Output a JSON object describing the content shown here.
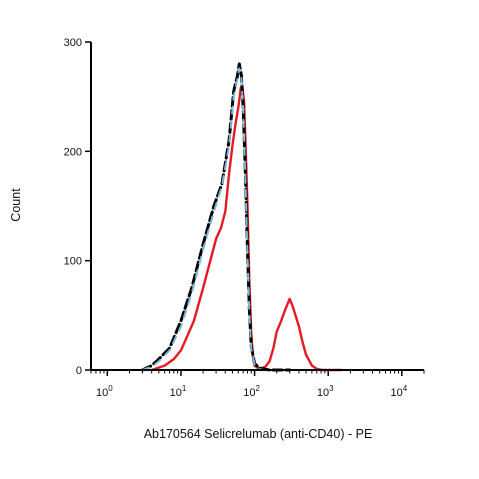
{
  "chart_data": {
    "type": "line",
    "title": "",
    "xlabel": "Ab170564 Selicrelumab (anti-CD40) - PE",
    "ylabel": "Count",
    "x_scale": "log",
    "xlim": [
      0.6,
      20000
    ],
    "ylim": [
      0,
      300
    ],
    "y_ticks": [
      0,
      100,
      200,
      300
    ],
    "y_tick_labels": [
      "0",
      "100",
      "200",
      "300"
    ],
    "x_ticks": [
      1,
      10,
      100,
      1000,
      10000
    ],
    "x_tick_labels": [
      {
        "base": "10",
        "exp": "0"
      },
      {
        "base": "10",
        "exp": "1"
      },
      {
        "base": "10",
        "exp": "2"
      },
      {
        "base": "10",
        "exp": "3"
      },
      {
        "base": "10",
        "exp": "4"
      }
    ],
    "grid": false,
    "legend": "none",
    "series": [
      {
        "color": "#000000",
        "style": "dashed",
        "x": [
          3,
          4,
          5,
          7,
          10,
          14,
          20,
          28,
          36,
          45,
          52,
          58,
          62,
          66,
          70,
          75,
          80,
          85,
          90,
          100,
          115,
          130,
          160,
          200,
          300
        ],
        "y": [
          0,
          4,
          10,
          20,
          45,
          75,
          115,
          150,
          170,
          210,
          255,
          268,
          280,
          270,
          240,
          180,
          110,
          55,
          22,
          6,
          2,
          1,
          0,
          0,
          0
        ]
      },
      {
        "color": "#7ab8dc",
        "style": "dashed",
        "x": [
          3,
          4,
          5,
          7,
          10,
          14,
          20,
          28,
          36,
          45,
          52,
          58,
          62,
          66,
          70,
          75,
          80,
          85,
          90,
          100,
          115,
          130,
          160,
          200,
          300
        ],
        "y": [
          0,
          3,
          8,
          18,
          40,
          70,
          110,
          145,
          168,
          205,
          250,
          265,
          276,
          268,
          238,
          175,
          105,
          50,
          20,
          5,
          1,
          0,
          0,
          0,
          0
        ]
      },
      {
        "color": "#e41b23",
        "style": "solid",
        "x": [
          4,
          6,
          8,
          10,
          12,
          15,
          20,
          25,
          30,
          35,
          40,
          45,
          50,
          55,
          60,
          65,
          68,
          72,
          75,
          80,
          85,
          90,
          95,
          100,
          110,
          120,
          140,
          160,
          180,
          200,
          230,
          260,
          300,
          330,
          360,
          400,
          450,
          500,
          600,
          700,
          850,
          1000,
          1500
        ],
        "y": [
          0,
          4,
          10,
          18,
          30,
          45,
          75,
          100,
          120,
          130,
          145,
          180,
          205,
          225,
          240,
          258,
          260,
          245,
          210,
          150,
          80,
          35,
          12,
          4,
          2,
          1,
          3,
          8,
          20,
          35,
          45,
          55,
          65,
          58,
          50,
          40,
          25,
          14,
          4,
          1,
          0,
          0,
          0
        ]
      }
    ]
  }
}
